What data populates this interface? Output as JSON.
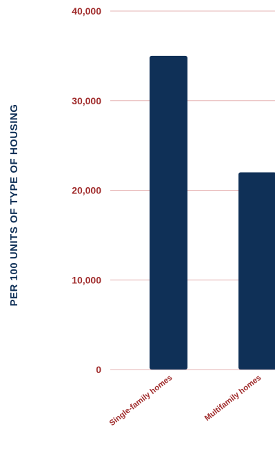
{
  "colors": {
    "bar": "#0f3057",
    "tick_label": "#a02c2c",
    "axis_title": "#0f3057",
    "grid": "#e6b3b3",
    "background": "#ffffff"
  },
  "chart_data": {
    "type": "bar",
    "title": "",
    "xlabel": "",
    "ylabel": "PER 100 UNITS OF TYPE OF HOUSING",
    "categories": [
      "Single-family homes",
      "Multifamily homes"
    ],
    "values": [
      35000,
      22000
    ],
    "ylim": [
      0,
      40000
    ],
    "yticks": [
      0,
      10000,
      20000,
      30000,
      40000
    ],
    "ytick_labels": [
      "0",
      "10,000",
      "20,000",
      "30,000",
      "40,000"
    ],
    "grid": true
  }
}
